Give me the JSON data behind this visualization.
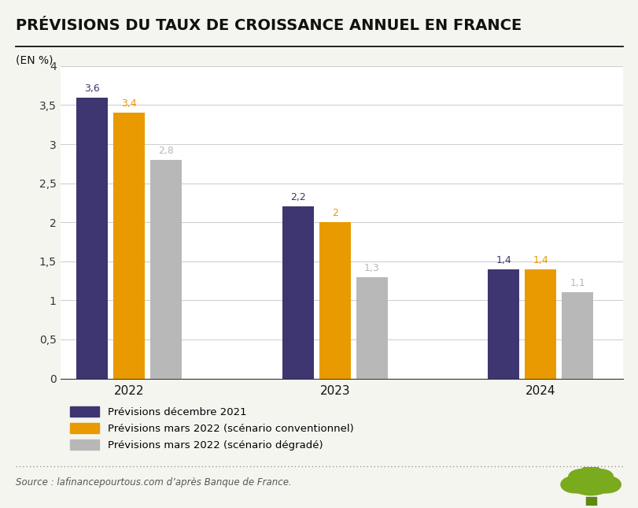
{
  "title": "PRÉVISIONS DU TAUX DE CROISSANCE ANNUEL EN FRANCE",
  "ylabel": "(EN %)",
  "years": [
    "2022",
    "2023",
    "2024"
  ],
  "series": {
    "dec2021": [
      3.6,
      2.2,
      1.4
    ],
    "mars2022_conv": [
      3.4,
      2.0,
      1.4
    ],
    "mars2022_deg": [
      2.8,
      1.3,
      1.1
    ]
  },
  "value_labels": {
    "dec2021": [
      "3,6",
      "2,2",
      "1,4"
    ],
    "mars2022_conv": [
      "3,4",
      "2",
      "1,4"
    ],
    "mars2022_deg": [
      "2,8",
      "1,3",
      "1,1"
    ]
  },
  "colors": {
    "dec2021": "#3d3670",
    "mars2022_conv": "#e89a00",
    "mars2022_deg": "#b8b8b8"
  },
  "legend_labels": [
    "Prévisions décembre 2021",
    "Prévisions mars 2022 (scénario conventionnel)",
    "Prévisions mars 2022 (scénario dégradé)"
  ],
  "ylim": [
    0,
    4.0
  ],
  "yticks": [
    0,
    0.5,
    1.0,
    1.5,
    2.0,
    2.5,
    3.0,
    3.5,
    4.0
  ],
  "ytick_labels": [
    "0",
    "0,5",
    "1",
    "1,5",
    "2",
    "2,5",
    "3",
    "3,5",
    "4"
  ],
  "source_text": "Source : lafinancepourtous.com d’après Banque de France.",
  "bg_color": "#f5f5f0",
  "plot_bg_color": "#ffffff",
  "tree_color": "#7aaa1e",
  "tree_trunk_color": "#5a8a10"
}
